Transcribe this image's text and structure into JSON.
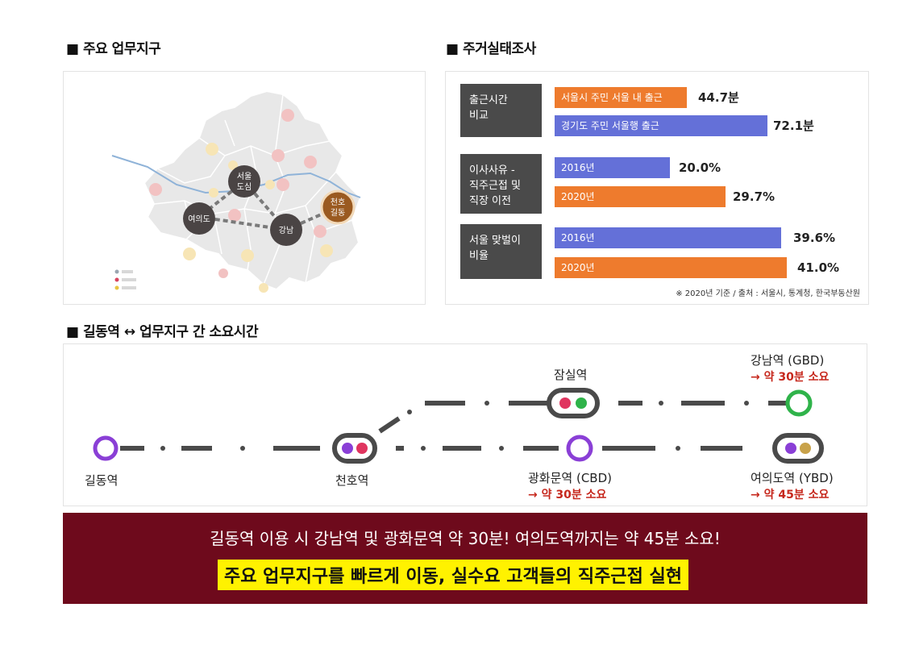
{
  "sections": {
    "map_title": "■ 주요 업무지구",
    "survey_title": "■ 주거실태조사",
    "route_title": "■ 길동역 ↔ 업무지구 간 소요시간"
  },
  "map": {
    "hubs": {
      "seoul_dosim": "서울\n도심",
      "yeouido": "여의도",
      "gangnam": "강남",
      "cheonho_gildong": "천호\n길동"
    },
    "colors": {
      "hub": "#4a4444",
      "highlight": "#9a5a20",
      "district": "#e8e8e8",
      "river": "#8fb3d8"
    }
  },
  "survey": {
    "groups": [
      {
        "category": "출근시간\n비교",
        "bars": [
          {
            "label": "서울시 주민 서울 내 출근",
            "value": "44.7분",
            "color": "orange"
          },
          {
            "label": "경기도 주민 서울행 출근",
            "value": "72.1분",
            "color": "blue"
          }
        ]
      },
      {
        "category": "이사사유 -\n직주근접 및\n직장 이전",
        "bars": [
          {
            "label": "2016년",
            "value": "20.0%",
            "color": "blue"
          },
          {
            "label": "2020년",
            "value": "29.7%",
            "color": "orange"
          }
        ]
      },
      {
        "category": "서울 맞벌이\n비율",
        "bars": [
          {
            "label": "2016년",
            "value": "39.6%",
            "color": "blue"
          },
          {
            "label": "2020년",
            "value": "41.0%",
            "color": "orange"
          }
        ]
      }
    ],
    "source": "※ 2020년 기준 / 출처 : 서울시, 통계청, 한국부동산원",
    "colors": {
      "orange": "#ee7b2d",
      "blue": "#6470d8",
      "category_bg": "#4a4a4a"
    }
  },
  "route": {
    "stations": {
      "gildong": "길동역",
      "cheonho": "천호역",
      "jamsil": "잠실역",
      "gwanghwamun": "광화문역 (CBD)",
      "gangnam": "강남역 (GBD)",
      "yeouido": "여의도역 (YBD)"
    },
    "times": {
      "gangnam": "→ 약 30분 소요",
      "gwanghwamun": "→ 약 30분 소요",
      "yeouido": "→ 약 45분 소요"
    },
    "colors": {
      "line5": "#8a3fd6",
      "line2": "#2fb34a",
      "line8": "#e0355f",
      "line9": "#c8a24a",
      "track": "#4a4a4a"
    }
  },
  "banner": {
    "line1": "길동역 이용 시 강남역 및 광화문역 약 30분! 여의도역까지는 약 45분 소요!",
    "highlight": "주요 업무지구를 빠르게 이동, 실수요 고객들의 직주근접 실현",
    "colors": {
      "bg": "#6e0a1c",
      "highlight_bg": "#fff200"
    }
  }
}
